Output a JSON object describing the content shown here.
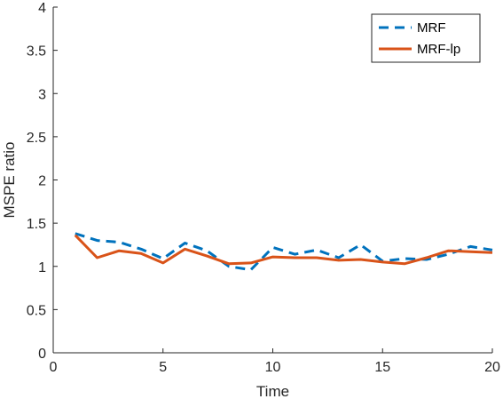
{
  "chart_data": {
    "type": "line",
    "title": "",
    "xlabel": "Time",
    "ylabel": "MSPE ratio",
    "xlim": [
      0,
      20
    ],
    "ylim": [
      0,
      4
    ],
    "grid": false,
    "legend_position": "top-right",
    "x_ticks": [
      "0",
      "5",
      "10",
      "15",
      "20"
    ],
    "y_ticks": [
      "0",
      "0.5",
      "1",
      "1.5",
      "2",
      "2.5",
      "3",
      "3.5",
      "4"
    ],
    "x": [
      1,
      2,
      3,
      4,
      5,
      6,
      7,
      8,
      9,
      10,
      11,
      12,
      13,
      14,
      15,
      16,
      17,
      18,
      19,
      20
    ],
    "series": [
      {
        "name": "MRF",
        "style": "dashed",
        "color": "#0072bd",
        "values": [
          1.38,
          1.3,
          1.28,
          1.2,
          1.09,
          1.27,
          1.18,
          1.0,
          0.96,
          1.22,
          1.14,
          1.19,
          1.1,
          1.25,
          1.06,
          1.09,
          1.08,
          1.14,
          1.23,
          1.19
        ]
      },
      {
        "name": "MRF-lp",
        "style": "solid",
        "color": "#d95319",
        "values": [
          1.36,
          1.1,
          1.18,
          1.15,
          1.04,
          1.2,
          1.12,
          1.03,
          1.04,
          1.11,
          1.1,
          1.1,
          1.07,
          1.08,
          1.05,
          1.03,
          1.1,
          1.18,
          1.17,
          1.16
        ]
      }
    ]
  }
}
